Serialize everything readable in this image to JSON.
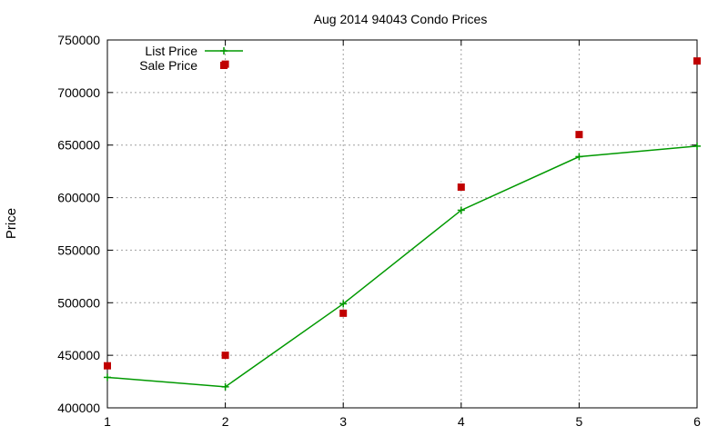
{
  "chart_data": {
    "type": "line",
    "title": "Aug 2014 94043 Condo Prices",
    "xlabel": "",
    "ylabel": "Price",
    "xlim": [
      1,
      6
    ],
    "ylim": [
      400000,
      750000
    ],
    "x_ticks": [
      1,
      2,
      3,
      4,
      5,
      6
    ],
    "y_ticks": [
      400000,
      450000,
      500000,
      550000,
      600000,
      650000,
      700000,
      750000
    ],
    "grid": true,
    "legend_position": "top-left",
    "series": [
      {
        "name": "List Price",
        "style": "line+cross",
        "color": "#009900",
        "x": [
          1,
          2,
          3,
          4,
          5,
          6
        ],
        "values": [
          429000,
          420000,
          499000,
          588000,
          639000,
          649000
        ]
      },
      {
        "name": "Sale Price",
        "style": "square-points",
        "color": "#c00000",
        "x": [
          1,
          2,
          3,
          4,
          5,
          6
        ],
        "values": [
          440000,
          450000,
          490000,
          610000,
          660000,
          730000
        ]
      }
    ],
    "extra_points": [
      {
        "series": "Sale Price",
        "x": 2,
        "y": 727000
      }
    ]
  }
}
